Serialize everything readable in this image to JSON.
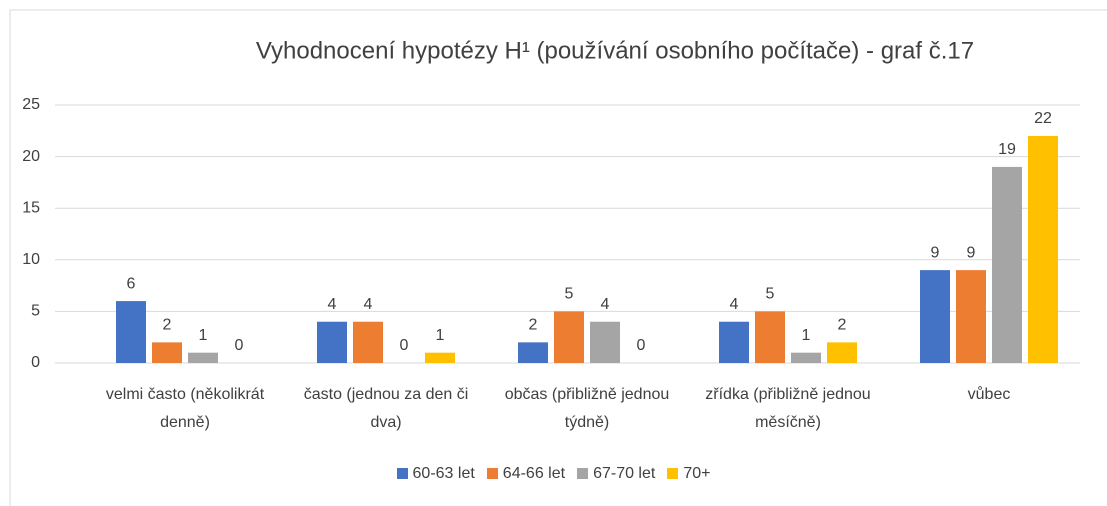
{
  "chart_data": {
    "type": "bar",
    "title": "Vyhodnocení hypotézy H¹ (používání osobního počítače) - graf č.17",
    "categories": [
      "velmi často (několikrát denně)",
      "často (jednou za den či dva)",
      "občas (přibližně jednou týdně)",
      "zřídka (přibližně jednou měsíčně)",
      "vůbec"
    ],
    "series": [
      {
        "name": "60-63 let",
        "color": "#4472c4",
        "values": [
          6,
          4,
          2,
          4,
          9
        ]
      },
      {
        "name": "64-66 let",
        "color": "#ed7d31",
        "values": [
          2,
          4,
          5,
          5,
          9
        ]
      },
      {
        "name": "67-70 let",
        "color": "#a5a5a5",
        "values": [
          1,
          0,
          4,
          1,
          19
        ]
      },
      {
        "name": "70+",
        "color": "#ffc000",
        "values": [
          0,
          1,
          0,
          2,
          22
        ]
      }
    ],
    "ylim": [
      0,
      25
    ],
    "yticks": [
      0,
      5,
      10,
      15,
      20,
      25
    ],
    "grid": true,
    "legend": "bottom"
  }
}
